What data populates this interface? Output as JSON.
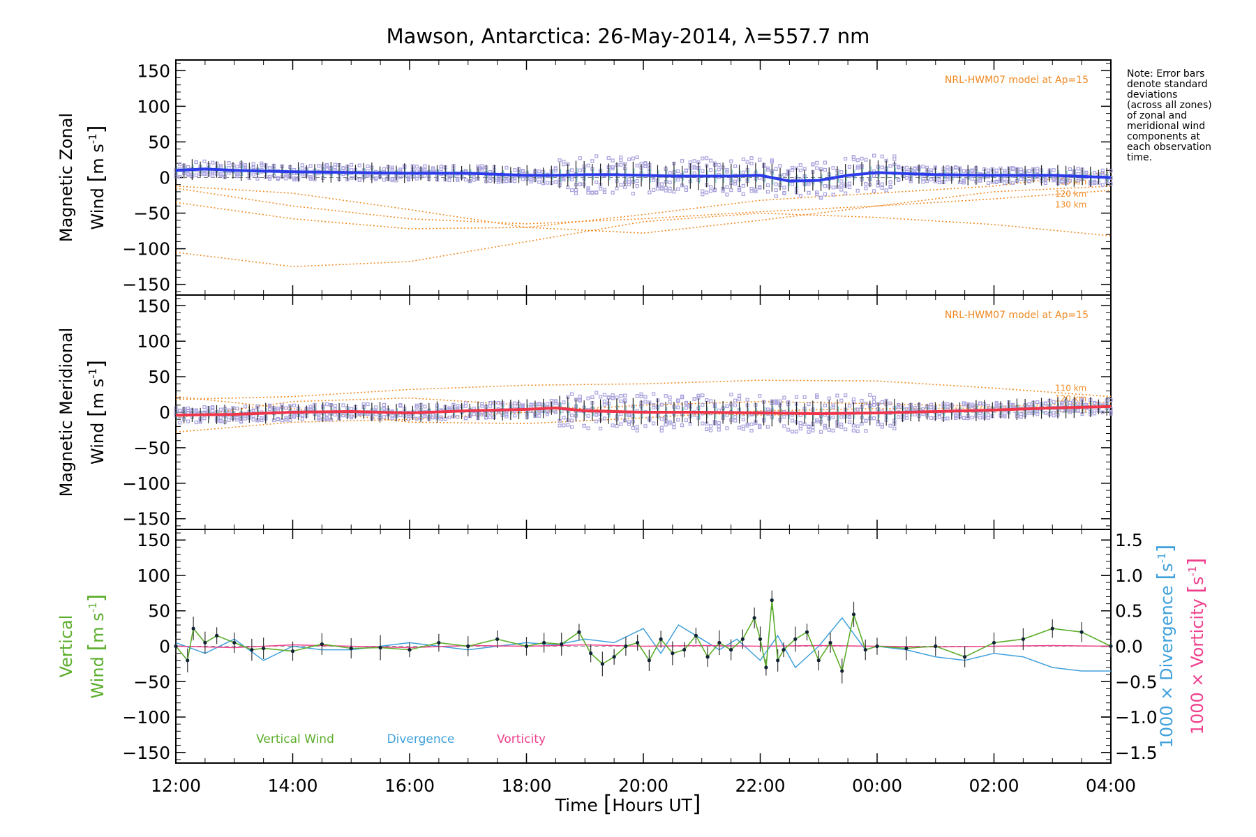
{
  "chart_data": {
    "title": "Mawson, Antarctica: 26-May-2014, λ=557.7 nm",
    "type": "line",
    "x_axis": {
      "label_parts": [
        "Time ",
        "[",
        "Hours UT",
        "]"
      ],
      "range_hours_utc": [
        12,
        28
      ],
      "tick_labels": [
        "12:00",
        "14:00",
        "16:00",
        "18:00",
        "20:00",
        "22:00",
        "00:00",
        "02:00",
        "04:00"
      ]
    },
    "note": [
      "Note: Error bars",
      "denote standard",
      "deviations",
      "(across all zones)",
      "of zonal and",
      "meridional wind",
      "components at",
      "each observation",
      "time."
    ],
    "colors": {
      "zonal": "#2b3bea",
      "meridional": "#f0344a",
      "model": "#f08a24",
      "scatter": "#a8a2dd",
      "vertical": "#5cae2c",
      "divergence": "#3fa0dc",
      "vorticity": "#ef3f8c"
    },
    "panels": [
      {
        "id": "zonal",
        "ylabel": {
          "line1": "Magnetic Zonal",
          "line2_parts": [
            "Wind ",
            "[",
            "m s",
            "-1",
            "]"
          ]
        },
        "ylim": [
          -165,
          165
        ],
        "yticks": [
          "150",
          "100",
          "50",
          "0",
          "−50",
          "−100",
          "−150"
        ],
        "model_label": "NRL-HWM07 model at Ap=15",
        "altitude_labels": [
          "110 km",
          "120 km",
          "130 km"
        ],
        "mean_series": {
          "name": "Magnetic Zonal Wind",
          "x": [
            12.0,
            12.5,
            13.0,
            13.5,
            14.0,
            15.0,
            16.0,
            17.0,
            18.0,
            18.5,
            19.0,
            19.5,
            20.0,
            20.5,
            21.0,
            21.5,
            22.0,
            22.5,
            23.0,
            23.5,
            24.0,
            25.0,
            26.0,
            27.0,
            28.0
          ],
          "y": [
            10,
            12,
            10,
            9,
            8,
            7,
            6,
            6,
            3,
            3,
            4,
            4,
            3,
            2,
            2,
            2,
            3,
            -5,
            -4,
            3,
            7,
            4,
            3,
            3,
            0
          ]
        },
        "model_series": [
          {
            "name": "110 km",
            "x": [
              12,
              14,
              16,
              18,
              20,
              22,
              24,
              26,
              28
            ],
            "y": [
              -15,
              -40,
              -58,
              -65,
              -58,
              -48,
              -40,
              -30,
              -18
            ]
          },
          {
            "name": "120 km",
            "x": [
              12,
              14,
              16,
              18,
              20,
              22,
              24,
              26,
              28
            ],
            "y": [
              -12,
              -22,
              -45,
              -70,
              -78,
              -60,
              -40,
              -20,
              -12
            ]
          },
          {
            "name": "130 km",
            "x": [
              12,
              14,
              16,
              18,
              20,
              22,
              24,
              26,
              28
            ],
            "y": [
              -105,
              -125,
              -118,
              -90,
              -62,
              -50,
              -56,
              -66,
              -82
            ]
          },
          {
            "name": "",
            "x": [
              12,
              14,
              16,
              18,
              20,
              22,
              24,
              26,
              28
            ],
            "y": [
              -35,
              -58,
              -72,
              -70,
              -52,
              -32,
              -22,
              -12,
              8
            ]
          }
        ]
      },
      {
        "id": "meridional",
        "ylabel": {
          "line1": "Magnetic Meridional",
          "line2_parts": [
            "Wind ",
            "[",
            "m s",
            "-1",
            "]"
          ]
        },
        "ylim": [
          -165,
          165
        ],
        "yticks": [
          "150",
          "100",
          "50",
          "0",
          "−50",
          "−100",
          "−150"
        ],
        "model_label": "NRL-HWM07 model at Ap=15",
        "altitude_labels": [
          "110 km",
          "120 km",
          "130 km"
        ],
        "mean_series": {
          "name": "Magnetic Meridional Wind",
          "x": [
            12.0,
            13.0,
            14.0,
            15.0,
            16.0,
            17.0,
            18.0,
            18.5,
            19.0,
            20.0,
            21.0,
            22.0,
            23.0,
            24.0,
            25.0,
            26.0,
            27.0,
            28.0
          ],
          "y": [
            -4,
            -3,
            0,
            1,
            -1,
            2,
            4,
            6,
            2,
            0,
            0,
            -1,
            -2,
            -1,
            1,
            3,
            6,
            8
          ]
        },
        "model_series": [
          {
            "name": "110 km",
            "x": [
              12,
              14,
              16,
              18,
              20,
              22,
              24,
              26,
              28
            ],
            "y": [
              18,
              22,
              32,
              38,
              40,
              45,
              44,
              34,
              22
            ]
          },
          {
            "name": "120 km",
            "x": [
              12,
              14,
              16,
              18,
              20,
              22,
              24,
              26,
              28
            ],
            "y": [
              -8,
              15,
              20,
              10,
              0,
              -4,
              -2,
              2,
              8
            ]
          },
          {
            "name": "130 km",
            "x": [
              12,
              14,
              16,
              18,
              20,
              22,
              24,
              26,
              28
            ],
            "y": [
              22,
              5,
              -14,
              -16,
              -8,
              2,
              5,
              6,
              10
            ]
          },
          {
            "name": "",
            "x": [
              12,
              14,
              16,
              18,
              20,
              22,
              24,
              26,
              28
            ],
            "y": [
              -28,
              -14,
              -10,
              0,
              10,
              15,
              12,
              8,
              14
            ]
          }
        ]
      },
      {
        "id": "vertical",
        "ylabel": {
          "line1": "Vertical",
          "line2_parts": [
            "Wind ",
            "[",
            "m s",
            "-1",
            "]"
          ]
        },
        "ylim": [
          -165,
          165
        ],
        "yticks": [
          "150",
          "100",
          "50",
          "0",
          "−50",
          "−100",
          "−150"
        ],
        "right_axis_ticks": [
          "1.5",
          "1.0",
          "0.5",
          "0.0",
          "−0.5",
          "−1.0",
          "−1.5"
        ],
        "right_axis_ylim": [
          -1.65,
          1.65
        ],
        "right_label1_parts": [
          "1000 × Divergence ",
          "[",
          "s",
          "-1",
          "]"
        ],
        "right_label2_parts": [
          "1000 × Vorticity ",
          "[",
          "s",
          "-1",
          "]"
        ],
        "legend": [
          "Vertical Wind",
          "Divergence",
          "Vorticity"
        ],
        "vertical_wind": {
          "x": [
            12.0,
            12.2,
            12.3,
            12.5,
            12.7,
            13.0,
            13.3,
            13.5,
            14.0,
            14.5,
            15.0,
            15.5,
            16.0,
            16.5,
            17.0,
            17.5,
            18.0,
            18.3,
            18.6,
            18.9,
            19.1,
            19.3,
            19.5,
            19.7,
            19.9,
            20.1,
            20.3,
            20.5,
            20.7,
            20.9,
            21.1,
            21.3,
            21.5,
            21.7,
            21.9,
            22.0,
            22.1,
            22.2,
            22.3,
            22.4,
            22.6,
            22.8,
            23.0,
            23.2,
            23.4,
            23.6,
            23.8,
            24.0,
            24.5,
            25.0,
            25.5,
            26.0,
            26.5,
            27.0,
            27.5,
            28.0
          ],
          "y": [
            0,
            -20,
            25,
            5,
            15,
            5,
            -5,
            -3,
            -7,
            3,
            -3,
            -2,
            -5,
            5,
            0,
            10,
            0,
            5,
            3,
            20,
            -10,
            -25,
            -15,
            0,
            5,
            -20,
            10,
            -10,
            -5,
            15,
            -15,
            5,
            -5,
            10,
            40,
            10,
            -30,
            65,
            -20,
            -5,
            10,
            20,
            -20,
            5,
            -35,
            45,
            -5,
            0,
            -3,
            0,
            -15,
            5,
            10,
            25,
            20,
            0
          ]
        },
        "divergence": {
          "x": [
            12,
            12.5,
            13,
            13.5,
            14,
            14.5,
            15,
            15.5,
            16,
            16.5,
            17,
            17.5,
            18,
            18.5,
            19,
            19.5,
            20,
            20.3,
            20.6,
            21,
            21.3,
            21.6,
            22,
            22.3,
            22.6,
            23,
            23.4,
            23.8,
            24,
            24.5,
            25,
            25.5,
            26,
            26.5,
            27,
            27.5,
            28
          ],
          "y": [
            0.05,
            -0.1,
            0.1,
            -0.2,
            0.0,
            -0.05,
            -0.05,
            0.0,
            0.05,
            0.0,
            -0.05,
            0.0,
            0.05,
            0.02,
            0.1,
            0.05,
            0.25,
            -0.1,
            0.3,
            0.1,
            -0.05,
            0.1,
            -0.2,
            0.15,
            -0.3,
            0.0,
            0.4,
            -0.05,
            0.0,
            -0.05,
            -0.15,
            -0.2,
            -0.1,
            -0.15,
            -0.3,
            -0.35,
            -0.35
          ]
        },
        "vorticity": {
          "x": [
            12,
            13,
            14,
            15,
            16,
            17,
            18,
            19,
            20,
            21,
            22,
            23,
            24,
            25,
            26,
            27,
            28
          ],
          "y": [
            0.0,
            -0.02,
            0.02,
            0.0,
            -0.02,
            0.01,
            0.0,
            0.02,
            0.0,
            0.01,
            0.0,
            0.01,
            0.0,
            -0.01,
            0.0,
            0.01,
            0.0
          ]
        }
      }
    ]
  }
}
